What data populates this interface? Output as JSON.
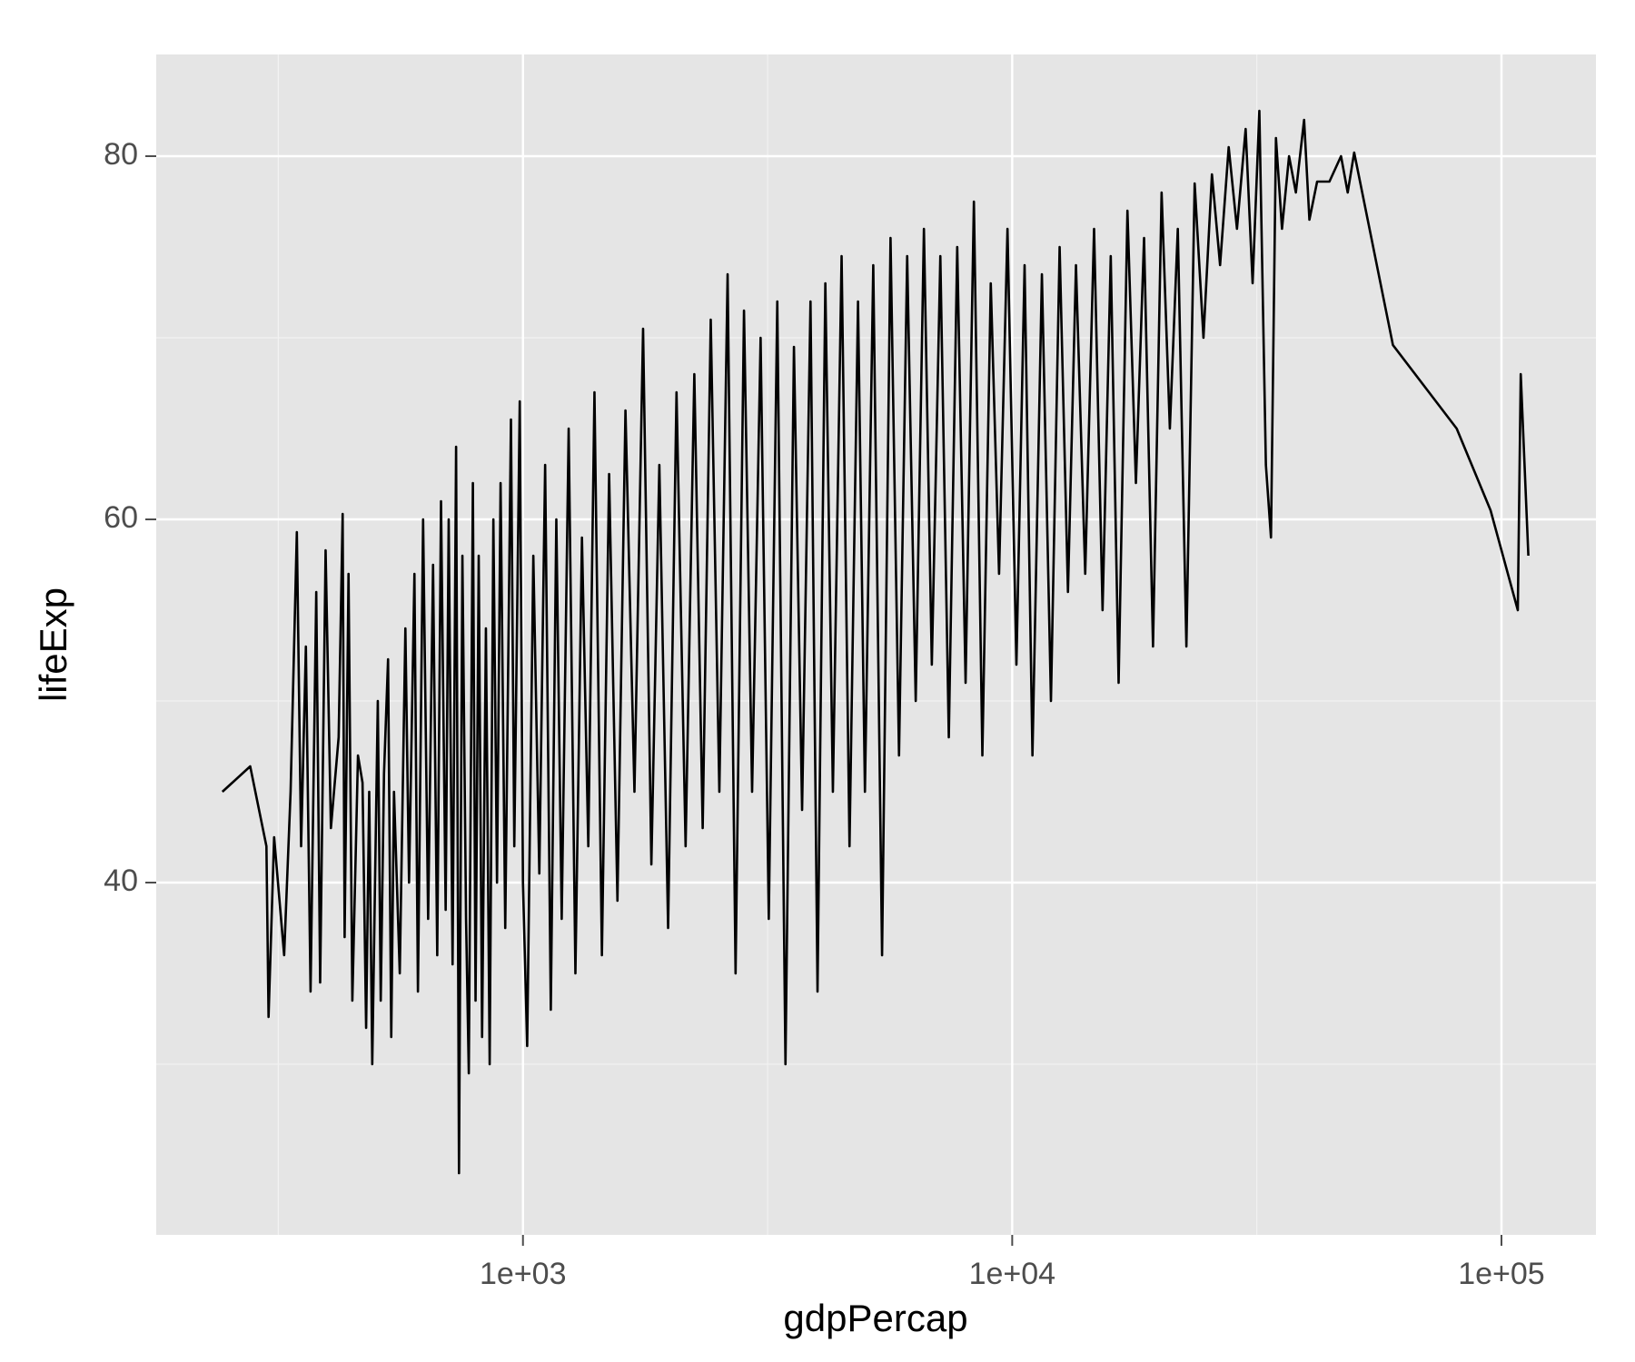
{
  "chart_data": {
    "type": "line",
    "x_label": "gdpPercap",
    "y_label": "lifeExp",
    "xscale": "log",
    "grid": true,
    "color": "#000000",
    "xlim": [
      178,
      156000
    ],
    "ylim": [
      20.6,
      85.6
    ],
    "xticks": [
      {
        "value": 1000,
        "label": "1e+03"
      },
      {
        "value": 10000,
        "label": "1e+04"
      },
      {
        "value": 100000,
        "label": "1e+05"
      }
    ],
    "x_minor_gridlines": [
      316.2,
      3162,
      31623
    ],
    "yticks": [
      40,
      60,
      80
    ],
    "y_minor_gridlines": [
      30,
      50,
      70
    ],
    "x": [
      243,
      277,
      299,
      302,
      310,
      325,
      335,
      345,
      352,
      360,
      368,
      378,
      385,
      395,
      405,
      420,
      428,
      432,
      440,
      448,
      460,
      470,
      478,
      485,
      492,
      505,
      512,
      520,
      530,
      538,
      545,
      560,
      575,
      585,
      600,
      610,
      625,
      640,
      655,
      668,
      680,
      695,
      705,
      718,
      730,
      740,
      752,
      765,
      775,
      790,
      800,
      812,
      825,
      840,
      855,
      870,
      885,
      900,
      920,
      945,
      960,
      985,
      1000,
      1020,
      1050,
      1080,
      1110,
      1140,
      1170,
      1200,
      1240,
      1280,
      1320,
      1360,
      1400,
      1450,
      1500,
      1560,
      1620,
      1690,
      1760,
      1830,
      1900,
      1980,
      2060,
      2150,
      2240,
      2330,
      2420,
      2520,
      2620,
      2720,
      2830,
      2940,
      3060,
      3180,
      3310,
      3440,
      3580,
      3720,
      3870,
      4000,
      4150,
      4300,
      4480,
      4650,
      4840,
      5000,
      5200,
      5420,
      5640,
      5870,
      6100,
      6350,
      6600,
      6850,
      7130,
      7420,
      7720,
      8030,
      8350,
      8690,
      9040,
      9400,
      9780,
      10200,
      10600,
      11000,
      11500,
      12000,
      12500,
      13000,
      13500,
      14100,
      14700,
      15300,
      15900,
      16500,
      17200,
      17900,
      18600,
      19400,
      20200,
      21000,
      21800,
      22700,
      23600,
      24600,
      25600,
      26600,
      27700,
      28800,
      30000,
      31000,
      32000,
      33000,
      33800,
      34600,
      35600,
      36800,
      38000,
      39500,
      40500,
      42000,
      44500,
      47000,
      48500,
      50000,
      60000,
      81000,
      95000,
      108000,
      109500,
      113500
    ],
    "values": [
      45.0,
      46.4,
      42.0,
      32.6,
      42.5,
      36.0,
      45.0,
      59.3,
      42.0,
      53.0,
      34.0,
      56.0,
      34.5,
      58.3,
      43.0,
      48.0,
      60.3,
      37.0,
      57.0,
      33.5,
      47.0,
      45.5,
      32.0,
      45.0,
      30.0,
      50.0,
      33.5,
      46.0,
      52.3,
      31.5,
      45.0,
      35.0,
      54.0,
      40.0,
      57.0,
      34.0,
      60.0,
      38.0,
      57.5,
      36.0,
      61.0,
      38.5,
      60.0,
      35.5,
      64.0,
      24.0,
      58.0,
      38.0,
      29.5,
      62.0,
      33.5,
      58.0,
      31.5,
      54.0,
      30.0,
      60.0,
      40.0,
      62.0,
      37.5,
      65.5,
      42.0,
      66.5,
      40.0,
      31.0,
      58.0,
      40.5,
      63.0,
      33.0,
      60.0,
      38.0,
      65.0,
      35.0,
      59.0,
      42.0,
      67.0,
      36.0,
      62.5,
      39.0,
      66.0,
      45.0,
      70.5,
      41.0,
      63.0,
      37.5,
      67.0,
      42.0,
      68.0,
      43.0,
      71.0,
      45.0,
      73.5,
      35.0,
      71.5,
      45.0,
      70.0,
      38.0,
      72.0,
      30.0,
      69.5,
      44.0,
      72.0,
      34.0,
      73.0,
      45.0,
      74.5,
      42.0,
      72.0,
      45.0,
      74.0,
      36.0,
      75.5,
      47.0,
      74.5,
      50.0,
      76.0,
      52.0,
      74.5,
      48.0,
      75.0,
      51.0,
      77.5,
      47.0,
      73.0,
      57.0,
      76.0,
      52.0,
      74.0,
      47.0,
      73.5,
      50.0,
      75.0,
      56.0,
      74.0,
      57.0,
      76.0,
      55.0,
      74.5,
      51.0,
      77.0,
      62.0,
      75.5,
      53.0,
      78.0,
      65.0,
      76.0,
      53.0,
      78.5,
      70.0,
      79.0,
      74.0,
      80.5,
      76.0,
      81.5,
      73.0,
      82.5,
      63.0,
      59.0,
      81.0,
      76.0,
      80.0,
      78.0,
      82.0,
      76.5,
      78.6,
      78.6,
      80.0,
      78.0,
      80.2,
      69.6,
      65.0,
      60.5,
      55.0,
      68.0,
      58.0
    ]
  }
}
